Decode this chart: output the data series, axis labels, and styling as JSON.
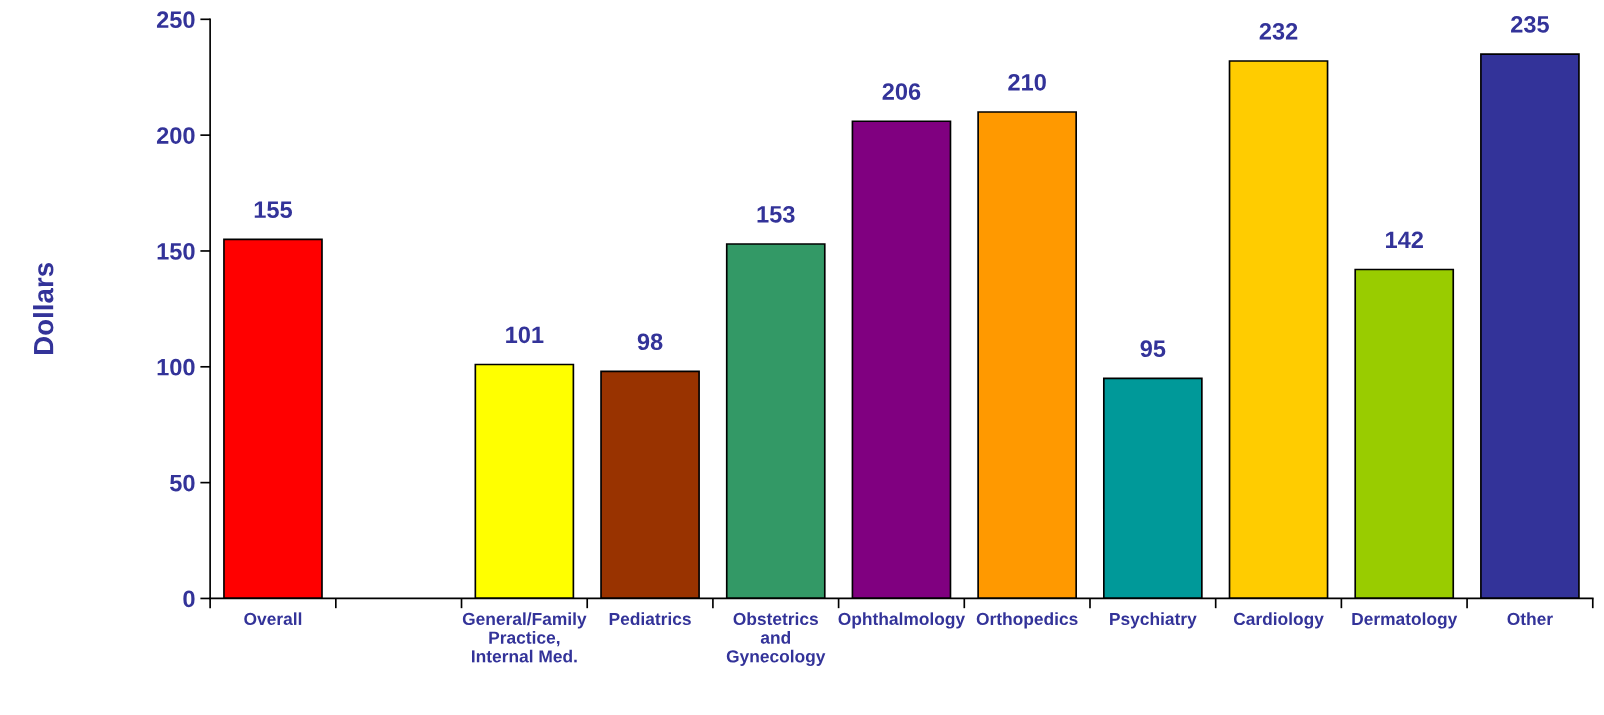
{
  "chart_data": {
    "type": "bar",
    "ylabel": "Dollars",
    "categories": [
      "Overall",
      null,
      "General/Family\nPractice,\nInternal Med.",
      "Pediatrics",
      "Obstetrics\nand\nGynecology",
      "Ophthalmology",
      "Orthopedics",
      "Psychiatry",
      "Cardiology",
      "Dermatology",
      "Other"
    ],
    "values": [
      155,
      null,
      101,
      98,
      153,
      206,
      210,
      95,
      232,
      142,
      235
    ],
    "colors": [
      "#ff0000",
      null,
      "#ffff00",
      "#993300",
      "#339966",
      "#800080",
      "#ff9900",
      "#009999",
      "#ffcc00",
      "#99cc00",
      "#333399"
    ],
    "ylim": [
      0,
      250
    ],
    "yticks": [
      0,
      50,
      100,
      150,
      200,
      250
    ],
    "data_labels": true,
    "grid": false
  }
}
